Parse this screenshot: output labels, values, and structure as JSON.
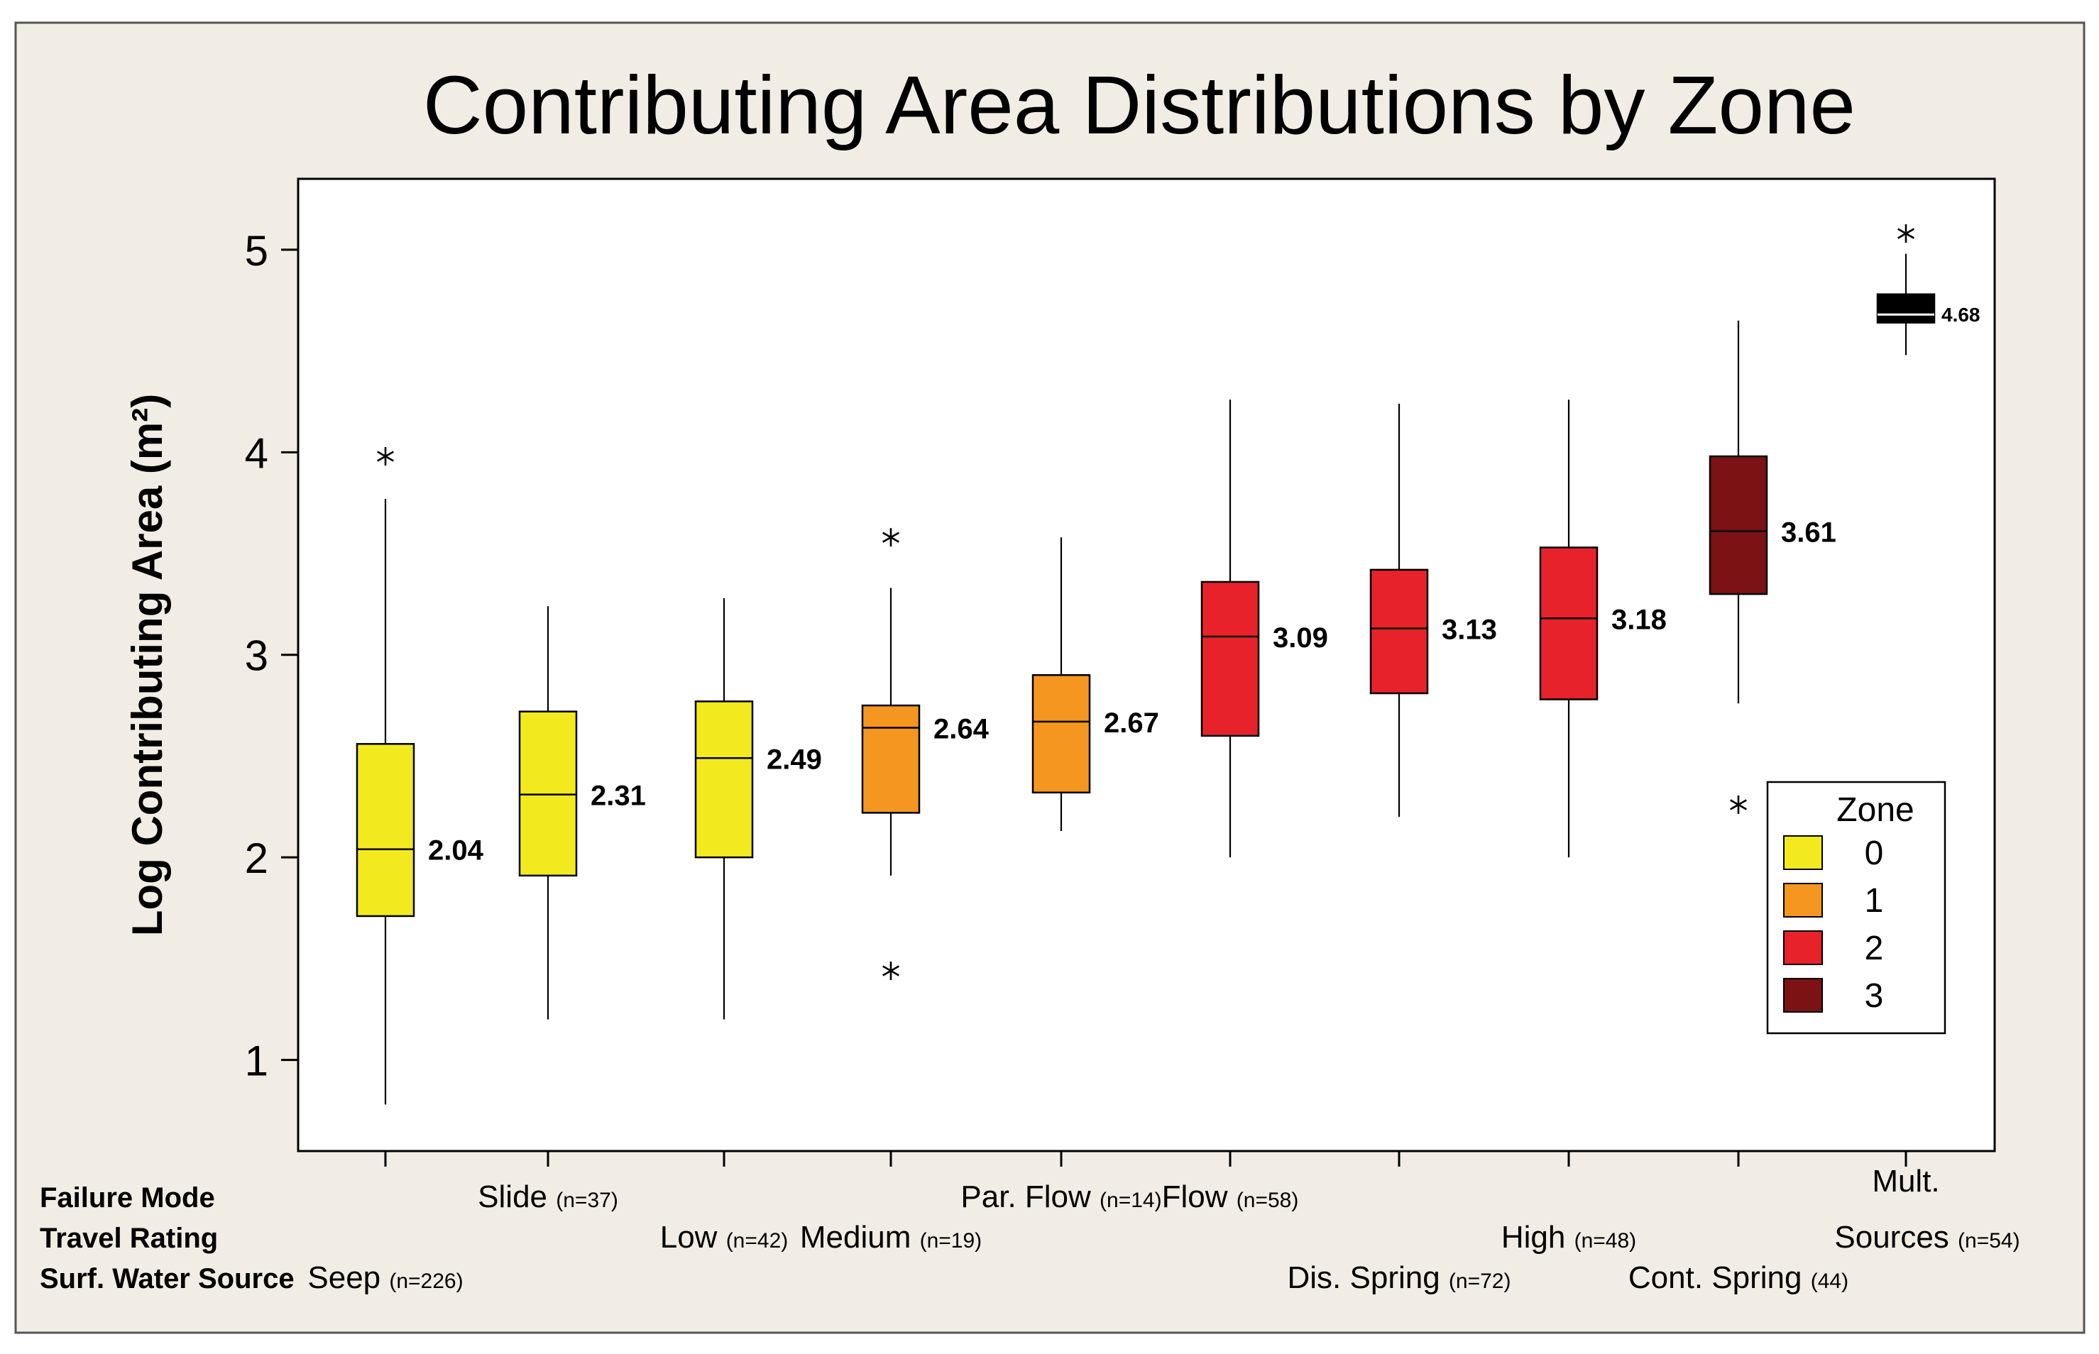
{
  "chart_data": {
    "type": "box",
    "title": "Contributing Area Distributions by Zone",
    "ylabel": "Log Contributing Area (m²)",
    "ylim": [
      0.55,
      5.35
    ],
    "yticks": [
      1,
      2,
      3,
      4,
      5
    ],
    "row_headers": [
      "Failure Mode",
      "Travel Rating",
      "Surf. Water Source"
    ],
    "boxes": [
      {
        "label": "Seep",
        "n": "(n=226)",
        "row": 2,
        "zone": 0,
        "min": 0.78,
        "q1": 1.71,
        "median": 2.04,
        "q3": 2.56,
        "max": 3.77,
        "median_label": "2.04",
        "outliers": [
          3.98
        ]
      },
      {
        "label": "Slide",
        "n": "(n=37)",
        "row": 0,
        "zone": 0,
        "min": 1.2,
        "q1": 1.91,
        "median": 2.31,
        "q3": 2.72,
        "max": 3.24,
        "median_label": "2.31",
        "outliers": []
      },
      {
        "label": "Low",
        "n": "(n=42)",
        "row": 1,
        "zone": 0,
        "min": 1.2,
        "q1": 2.0,
        "median": 2.49,
        "q3": 2.77,
        "max": 3.28,
        "median_label": "2.49",
        "outliers": []
      },
      {
        "label": "Medium",
        "n": "(n=19)",
        "row": 1,
        "zone": 1,
        "min": 1.91,
        "q1": 2.22,
        "median": 2.64,
        "q3": 2.75,
        "max": 3.33,
        "median_label": "2.64",
        "outliers": [
          3.58,
          1.44
        ]
      },
      {
        "label": "Par. Flow",
        "n": "(n=14)",
        "row": 0,
        "zone": 1,
        "min": 2.13,
        "q1": 2.32,
        "median": 2.67,
        "q3": 2.9,
        "max": 3.58,
        "median_label": "2.67",
        "outliers": []
      },
      {
        "label": "Flow",
        "n": "(n=58)",
        "row": 0,
        "zone": 2,
        "min": 2.0,
        "q1": 2.6,
        "median": 3.09,
        "q3": 3.36,
        "max": 4.26,
        "median_label": "3.09",
        "outliers": []
      },
      {
        "label": "Dis. Spring",
        "n": "(n=72)",
        "row": 2,
        "zone": 2,
        "min": 2.2,
        "q1": 2.81,
        "median": 3.13,
        "q3": 3.42,
        "max": 4.24,
        "median_label": "3.13",
        "outliers": []
      },
      {
        "label": "High",
        "n": "(n=48)",
        "row": 1,
        "zone": 2,
        "min": 2.0,
        "q1": 2.78,
        "median": 3.18,
        "q3": 3.53,
        "max": 4.26,
        "median_label": "3.18",
        "outliers": []
      },
      {
        "label": "Cont. Spring",
        "n": "(44)",
        "row": 2,
        "zone": 3,
        "min": 2.76,
        "q1": 3.3,
        "median": 3.61,
        "q3": 3.98,
        "max": 4.65,
        "median_label": "3.61",
        "outliers": [
          2.26
        ]
      },
      {
        "label": "Mult.|Sources",
        "n": "(n=54)",
        "row": 1,
        "zone": 4,
        "min": 4.48,
        "q1": 4.64,
        "median": 4.68,
        "q3": 4.78,
        "max": 4.98,
        "median_label": "4.68",
        "outliers": [
          5.08
        ]
      }
    ],
    "legend": {
      "title": "Zone",
      "position": "right",
      "entries": [
        {
          "label": "0",
          "color": "#f2ea1e"
        },
        {
          "label": "1",
          "color": "#f4961f"
        },
        {
          "label": "2",
          "color": "#e8222a"
        },
        {
          "label": "3",
          "color": "#7c1214"
        }
      ]
    },
    "zone_colors": [
      "#f2ea1e",
      "#f4961f",
      "#e8222a",
      "#7c1214",
      "#000000"
    ],
    "frame_background": "#f1ede4",
    "plot_background": "#ffffff"
  }
}
